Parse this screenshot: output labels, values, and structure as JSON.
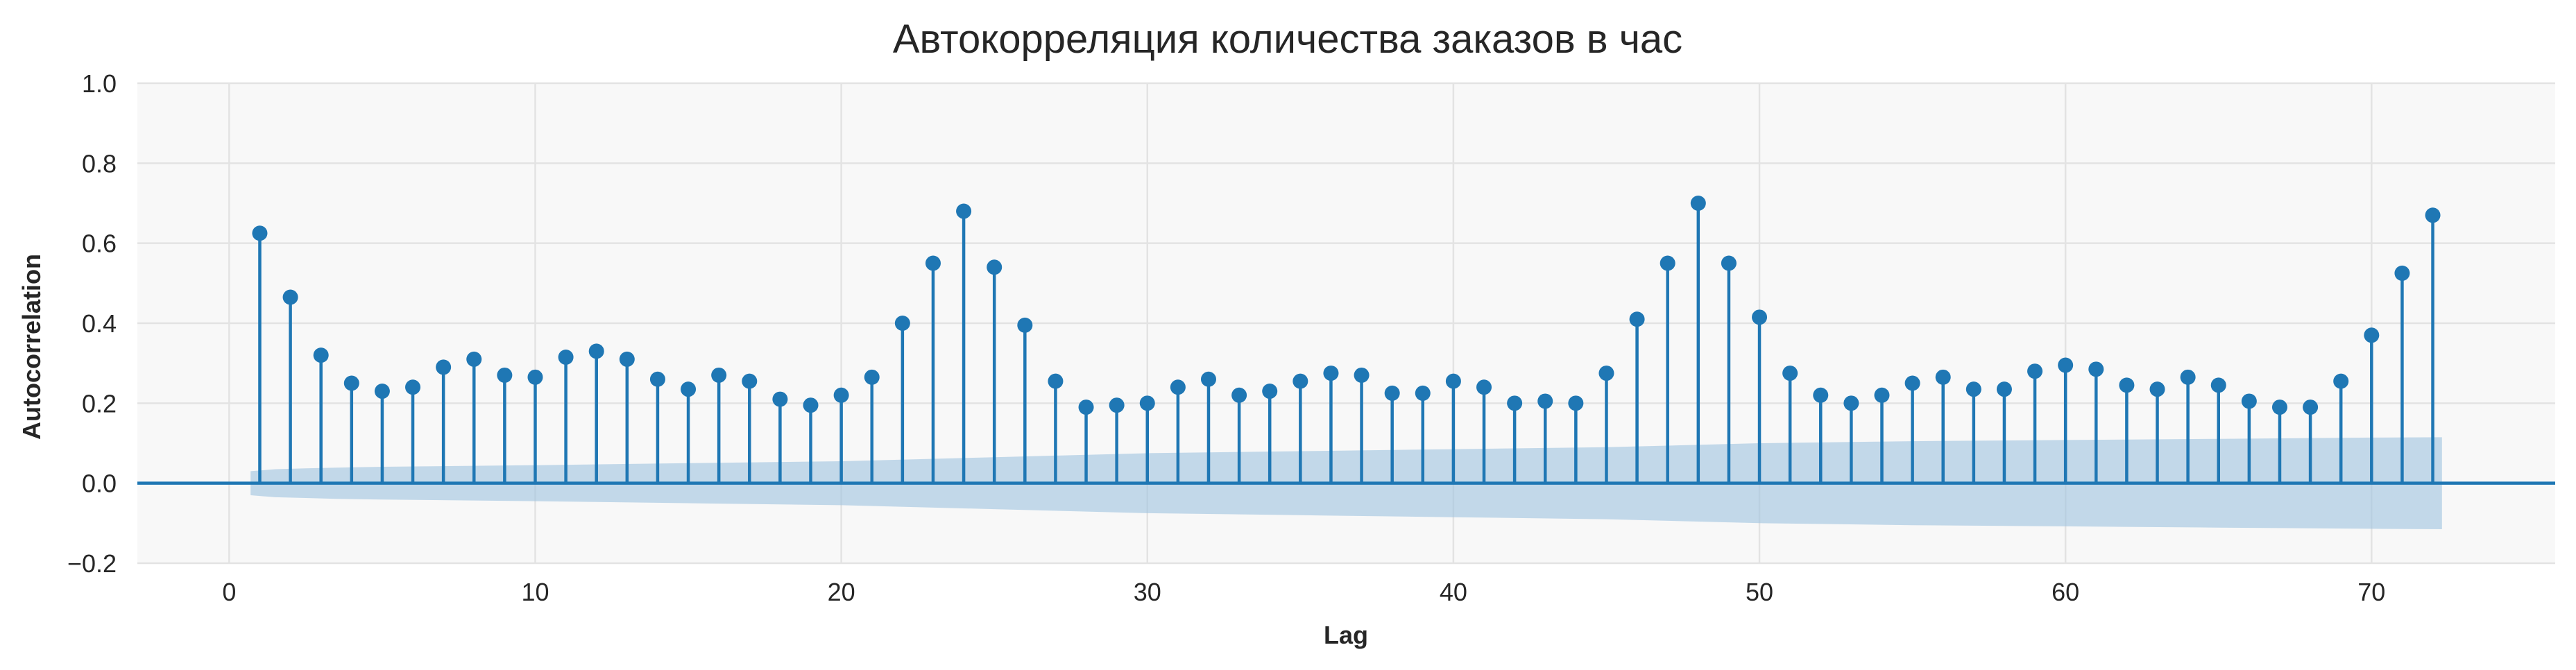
{
  "chart_data": {
    "type": "stem",
    "title": "Автокорреляция количества заказов в час",
    "xlabel": "Lag",
    "ylabel": "Autocorrelation",
    "xlim": [
      -3,
      76
    ],
    "ylim": [
      -0.2,
      1.0
    ],
    "xticks": [
      0,
      10,
      20,
      30,
      40,
      50,
      60,
      70
    ],
    "xtick_labels": [
      "0",
      "10",
      "20",
      "30",
      "40",
      "50",
      "60",
      "70"
    ],
    "yticks": [
      -0.2,
      0.0,
      0.2,
      0.4,
      0.6,
      0.8,
      1.0
    ],
    "ytick_labels": [
      "−0.2",
      "0.0",
      "0.2",
      "0.4",
      "0.6",
      "0.8",
      "1.0"
    ],
    "grid": true,
    "x": [
      1,
      2,
      3,
      4,
      5,
      6,
      7,
      8,
      9,
      10,
      11,
      12,
      13,
      14,
      15,
      16,
      17,
      18,
      19,
      20,
      21,
      22,
      23,
      24,
      25,
      26,
      27,
      28,
      29,
      30,
      31,
      32,
      33,
      34,
      35,
      36,
      37,
      38,
      39,
      40,
      41,
      42,
      43,
      44,
      45,
      46,
      47,
      48,
      49,
      50,
      51,
      52,
      53,
      54,
      55,
      56,
      57,
      58,
      59,
      60,
      61,
      62,
      63,
      64,
      65,
      66,
      67,
      68,
      69,
      70,
      71,
      72
    ],
    "values": [
      0.625,
      0.465,
      0.32,
      0.25,
      0.23,
      0.24,
      0.29,
      0.31,
      0.27,
      0.265,
      0.315,
      0.33,
      0.31,
      0.26,
      0.235,
      0.27,
      0.255,
      0.21,
      0.195,
      0.22,
      0.265,
      0.4,
      0.55,
      0.68,
      0.54,
      0.395,
      0.255,
      0.19,
      0.195,
      0.2,
      0.24,
      0.26,
      0.22,
      0.23,
      0.255,
      0.275,
      0.27,
      0.225,
      0.225,
      0.255,
      0.24,
      0.2,
      0.205,
      0.2,
      0.275,
      0.41,
      0.55,
      0.7,
      0.55,
      0.415,
      0.275,
      0.22,
      0.2,
      0.22,
      0.25,
      0.265,
      0.235,
      0.235,
      0.28,
      0.295,
      0.285,
      0.245,
      0.235,
      0.265,
      0.245,
      0.205,
      0.19,
      0.19,
      0.255,
      0.37,
      0.525,
      0.67
    ],
    "confidence_band": {
      "x": [
        0.7,
        1.5,
        2.5,
        3.5,
        5,
        10,
        15,
        20,
        25,
        30,
        35,
        40,
        45,
        50,
        55,
        60,
        65,
        70,
        72.3
      ],
      "upper": [
        0.03,
        0.035,
        0.037,
        0.039,
        0.041,
        0.045,
        0.05,
        0.055,
        0.065,
        0.075,
        0.08,
        0.085,
        0.09,
        0.1,
        0.105,
        0.108,
        0.111,
        0.114,
        0.115
      ]
    },
    "colors": {
      "stem": "#1f77b4",
      "band": "#9ec3df",
      "plot_bg": "#f8f8f8",
      "grid": "#e3e3e3"
    }
  }
}
